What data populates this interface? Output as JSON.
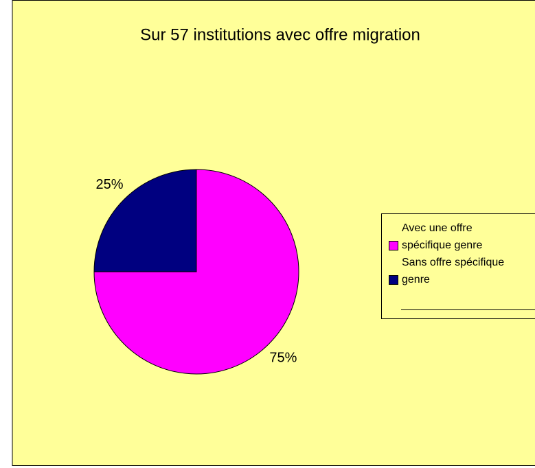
{
  "chart_data": {
    "type": "pie",
    "title": "Sur 57 institutions avec offre migration",
    "categories": [
      "Avec une offre spécifique genre",
      "Sans offre spécifique genre"
    ],
    "values": [
      75,
      25
    ],
    "value_labels": [
      "75%",
      "25%"
    ],
    "colors": [
      "#FF00FF",
      "#000080"
    ],
    "legend": "right"
  }
}
